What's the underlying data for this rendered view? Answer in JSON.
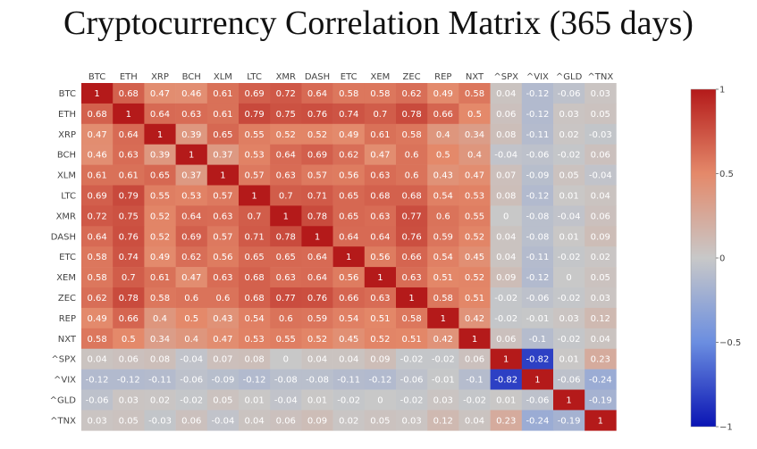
{
  "chart_data": {
    "type": "heatmap",
    "title": "Cryptocurrency Correlation Matrix (365 days)",
    "xlabel": "",
    "ylabel": "",
    "labels": [
      "BTC",
      "ETH",
      "XRP",
      "BCH",
      "XLM",
      "LTC",
      "XMR",
      "DASH",
      "ETC",
      "XEM",
      "ZEC",
      "REP",
      "NXT",
      "^SPX",
      "^VIX",
      "^GLD",
      "^TNX"
    ],
    "values": [
      [
        1,
        0.68,
        0.47,
        0.46,
        0.61,
        0.69,
        0.72,
        0.64,
        0.58,
        0.58,
        0.62,
        0.49,
        0.58,
        0.04,
        -0.12,
        -0.06,
        0.03
      ],
      [
        0.68,
        1,
        0.64,
        0.63,
        0.61,
        0.79,
        0.75,
        0.76,
        0.74,
        0.7,
        0.78,
        0.66,
        0.5,
        0.06,
        -0.12,
        0.03,
        0.05
      ],
      [
        0.47,
        0.64,
        1,
        0.39,
        0.65,
        0.55,
        0.52,
        0.52,
        0.49,
        0.61,
        0.58,
        0.4,
        0.34,
        0.08,
        -0.11,
        0.02,
        -0.03
      ],
      [
        0.46,
        0.63,
        0.39,
        1,
        0.37,
        0.53,
        0.64,
        0.69,
        0.62,
        0.47,
        0.6,
        0.5,
        0.4,
        -0.04,
        -0.06,
        -0.02,
        0.06
      ],
      [
        0.61,
        0.61,
        0.65,
        0.37,
        1,
        0.57,
        0.63,
        0.57,
        0.56,
        0.63,
        0.6,
        0.43,
        0.47,
        0.07,
        -0.09,
        0.05,
        -0.04
      ],
      [
        0.69,
        0.79,
        0.55,
        0.53,
        0.57,
        1,
        0.7,
        0.71,
        0.65,
        0.68,
        0.68,
        0.54,
        0.53,
        0.08,
        -0.12,
        0.01,
        0.04
      ],
      [
        0.72,
        0.75,
        0.52,
        0.64,
        0.63,
        0.7,
        1,
        0.78,
        0.65,
        0.63,
        0.77,
        0.6,
        0.55,
        0,
        -0.08,
        -0.04,
        0.06
      ],
      [
        0.64,
        0.76,
        0.52,
        0.69,
        0.57,
        0.71,
        0.78,
        1,
        0.64,
        0.64,
        0.76,
        0.59,
        0.52,
        0.04,
        -0.08,
        0.01,
        0.09
      ],
      [
        0.58,
        0.74,
        0.49,
        0.62,
        0.56,
        0.65,
        0.65,
        0.64,
        1,
        0.56,
        0.66,
        0.54,
        0.45,
        0.04,
        -0.11,
        -0.02,
        0.02
      ],
      [
        0.58,
        0.7,
        0.61,
        0.47,
        0.63,
        0.68,
        0.63,
        0.64,
        0.56,
        1,
        0.63,
        0.51,
        0.52,
        0.09,
        -0.12,
        0,
        0.05
      ],
      [
        0.62,
        0.78,
        0.58,
        0.6,
        0.6,
        0.68,
        0.77,
        0.76,
        0.66,
        0.63,
        1,
        0.58,
        0.51,
        -0.02,
        -0.06,
        -0.02,
        0.03
      ],
      [
        0.49,
        0.66,
        0.4,
        0.5,
        0.43,
        0.54,
        0.6,
        0.59,
        0.54,
        0.51,
        0.58,
        1,
        0.42,
        -0.02,
        -0.01,
        0.03,
        0.12
      ],
      [
        0.58,
        0.5,
        0.34,
        0.4,
        0.47,
        0.53,
        0.55,
        0.52,
        0.45,
        0.52,
        0.51,
        0.42,
        1,
        0.06,
        -0.1,
        -0.02,
        0.04
      ],
      [
        0.04,
        0.06,
        0.08,
        -0.04,
        0.07,
        0.08,
        0,
        0.04,
        0.04,
        0.09,
        -0.02,
        -0.02,
        0.06,
        1,
        -0.82,
        0.01,
        0.23
      ],
      [
        -0.12,
        -0.12,
        -0.11,
        -0.06,
        -0.09,
        -0.12,
        -0.08,
        -0.08,
        -0.11,
        -0.12,
        -0.06,
        -0.01,
        -0.1,
        -0.82,
        1,
        -0.06,
        -0.24
      ],
      [
        -0.06,
        0.03,
        0.02,
        -0.02,
        0.05,
        0.01,
        -0.04,
        0.01,
        -0.02,
        0,
        -0.02,
        0.03,
        -0.02,
        0.01,
        -0.06,
        1,
        -0.19
      ],
      [
        0.03,
        0.05,
        -0.03,
        0.06,
        -0.04,
        0.04,
        0.06,
        0.09,
        0.02,
        0.05,
        0.03,
        0.12,
        0.04,
        0.23,
        -0.24,
        -0.19,
        1
      ]
    ],
    "colorscale": {
      "name": "RdBu",
      "min": -1,
      "max": 1,
      "stops": [
        [
          0,
          "#0a14b4"
        ],
        [
          0.25,
          "#6b8ee0"
        ],
        [
          0.5,
          "#c8c8c8"
        ],
        [
          0.75,
          "#e4896a"
        ],
        [
          1,
          "#b41a1a"
        ]
      ]
    },
    "colorbar": {
      "ticks": [
        1,
        0.5,
        0,
        -0.5,
        -1
      ],
      "tick_labels": [
        "1",
        "0.5",
        "0",
        "−0.5",
        "−1"
      ]
    },
    "zlim": [
      -1,
      1
    ]
  }
}
